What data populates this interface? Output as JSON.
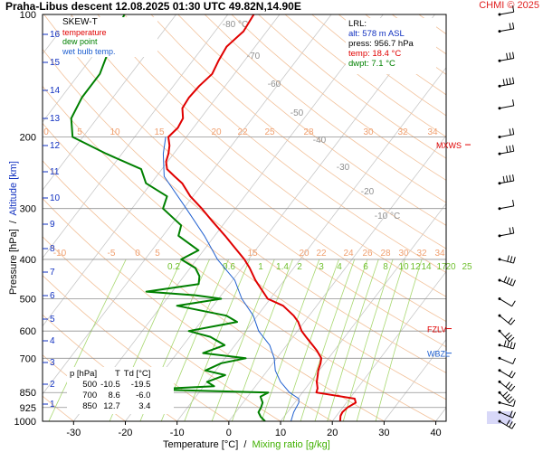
{
  "header": {
    "title": "Praha-Libus   descent   12.08.2025 01:30 UTC  49.82N,14.90E",
    "copyright": "CHMI © 2025"
  },
  "legend": {
    "title": "SKEW-T",
    "items": [
      {
        "label": "temperature",
        "color": "#e00000"
      },
      {
        "label": "dew point",
        "color": "#008000"
      },
      {
        "label": "wet bulb temp.",
        "color": "#2060d0"
      }
    ]
  },
  "lrl": {
    "title": "LRL:",
    "alt": "alt: 578 m ASL",
    "press": "press: 956.7 hPa",
    "temp": "temp: 18.4 °C",
    "dwpt": "dwpt: 7.1 °C"
  },
  "table": {
    "headers": [
      "p [hPa]",
      "T",
      "Td [°C]"
    ],
    "rows": [
      [
        "500",
        "-10.5",
        "-19.5"
      ],
      [
        "700",
        "8.6",
        "-6.0"
      ],
      [
        "850",
        "12.7",
        "3.4"
      ]
    ]
  },
  "axes": {
    "ylabel_pressure": "Pressure [hPa]",
    "ylabel_sep": "  /  ",
    "ylabel_altitude": "Altitude [km]",
    "xlabel_temp": "Temperature [°C]",
    "xlabel_sep": "  /  ",
    "xlabel_mixing": "Mixing ratio [g/kg]"
  },
  "markers": {
    "mxws": "MXWS",
    "fzlv": "FZLV",
    "wbzl": "WBZL"
  },
  "chart_data": {
    "type": "line",
    "diagram": "skew-T log-p",
    "pressure_ticks": [
      100,
      200,
      300,
      400,
      500,
      600,
      700,
      850,
      925,
      1000
    ],
    "temperature_ticks": [
      -30,
      -20,
      -10,
      0,
      10,
      20,
      30,
      40
    ],
    "xlim": [
      -36,
      42
    ],
    "ylim_hPa": [
      1000,
      100
    ],
    "altitude_ticks_km": [
      1,
      2,
      3,
      4,
      5,
      6,
      7,
      8,
      9,
      10,
      11,
      12,
      13,
      14,
      15,
      16
    ],
    "isotherm_labels": [
      -80,
      -70,
      -60,
      -50,
      -40,
      -30,
      -20,
      -10
    ],
    "isotherm_label_unit": "°C",
    "mixing_ratio_labels": [
      "0.2",
      "0.6",
      "1",
      "1.4",
      "2",
      "3",
      "4",
      "6",
      "8",
      "10",
      "12",
      "14",
      "17",
      "20",
      "25"
    ],
    "dry_adiabat_labels_200": [
      5,
      10,
      15,
      20,
      22,
      25,
      28,
      30,
      32,
      34
    ],
    "dry_adiabat_labels_400": [
      -10,
      -5,
      0,
      5,
      15,
      20,
      22,
      24,
      26,
      28,
      30,
      32,
      34
    ],
    "series": [
      {
        "name": "temperature",
        "color": "#e00000",
        "points": [
          [
            1000,
            21.5
          ],
          [
            970,
            20.8
          ],
          [
            950,
            20.6
          ],
          [
            925,
            20.9
          ],
          [
            900,
            21.8
          ],
          [
            880,
            21.0
          ],
          [
            850,
            12.7
          ],
          [
            830,
            12.3
          ],
          [
            800,
            11.2
          ],
          [
            770,
            10.4
          ],
          [
            750,
            9.8
          ],
          [
            720,
            9.2
          ],
          [
            700,
            8.6
          ],
          [
            670,
            6.6
          ],
          [
            650,
            5.0
          ],
          [
            620,
            2.5
          ],
          [
            600,
            0.8
          ],
          [
            570,
            -1.2
          ],
          [
            550,
            -3.0
          ],
          [
            520,
            -6.5
          ],
          [
            500,
            -10.5
          ],
          [
            470,
            -13.5
          ],
          [
            450,
            -15.6
          ],
          [
            420,
            -18.5
          ],
          [
            400,
            -20.8
          ],
          [
            370,
            -25.0
          ],
          [
            350,
            -28.0
          ],
          [
            320,
            -33.0
          ],
          [
            300,
            -36.5
          ],
          [
            280,
            -40.5
          ],
          [
            260,
            -44.0
          ],
          [
            250,
            -46.5
          ],
          [
            240,
            -49.0
          ],
          [
            230,
            -50.3
          ],
          [
            220,
            -51.0
          ],
          [
            210,
            -52.0
          ],
          [
            200,
            -53.5
          ],
          [
            190,
            -53.0
          ],
          [
            180,
            -53.4
          ],
          [
            170,
            -55.0
          ],
          [
            160,
            -55.3
          ],
          [
            150,
            -55.0
          ],
          [
            140,
            -54.3
          ],
          [
            130,
            -55.0
          ],
          [
            120,
            -55.5
          ],
          [
            110,
            -54.5
          ],
          [
            100,
            -55.0
          ]
        ]
      },
      {
        "name": "dew point",
        "color": "#008000",
        "points": [
          [
            1000,
            7.0
          ],
          [
            975,
            5.5
          ],
          [
            950,
            4.4
          ],
          [
            925,
            4.2
          ],
          [
            900,
            3.8
          ],
          [
            870,
            2.5
          ],
          [
            850,
            3.4
          ],
          [
            835,
            -20.0
          ],
          [
            820,
            -8.0
          ],
          [
            800,
            -10.0
          ],
          [
            770,
            -7.5
          ],
          [
            750,
            -12.0
          ],
          [
            720,
            -10.0
          ],
          [
            700,
            -6.0
          ],
          [
            680,
            -15.0
          ],
          [
            650,
            -12.0
          ],
          [
            620,
            -16.0
          ],
          [
            600,
            -21.0
          ],
          [
            570,
            -13.0
          ],
          [
            550,
            -16.0
          ],
          [
            520,
            -27.0
          ],
          [
            500,
            -19.5
          ],
          [
            490,
            -25.0
          ],
          [
            480,
            -35.0
          ],
          [
            460,
            -26.0
          ],
          [
            440,
            -27.0
          ],
          [
            420,
            -29.0
          ],
          [
            400,
            -33.0
          ],
          [
            380,
            -31.0
          ],
          [
            350,
            -37.0
          ],
          [
            330,
            -38.0
          ],
          [
            300,
            -44.0
          ],
          [
            280,
            -45.0
          ],
          [
            260,
            -51.0
          ],
          [
            240,
            -54.0
          ],
          [
            220,
            -63.0
          ],
          [
            200,
            -72.0
          ],
          [
            180,
            -75.0
          ],
          [
            160,
            -76.0
          ],
          [
            140,
            -76.0
          ],
          [
            120,
            -78.0
          ],
          [
            100,
            -80.0
          ]
        ]
      },
      {
        "name": "wet bulb temp.",
        "color": "#2060d0",
        "points": [
          [
            1000,
            12.0
          ],
          [
            950,
            11.2
          ],
          [
            925,
            11.0
          ],
          [
            900,
            10.8
          ],
          [
            880,
            10.2
          ],
          [
            850,
            7.5
          ],
          [
            800,
            4.2
          ],
          [
            750,
            1.5
          ],
          [
            700,
            -0.5
          ],
          [
            650,
            -3.3
          ],
          [
            600,
            -7.5
          ],
          [
            550,
            -10.8
          ],
          [
            500,
            -15.5
          ],
          [
            450,
            -19.6
          ],
          [
            400,
            -26.0
          ],
          [
            350,
            -32.0
          ],
          [
            300,
            -39.5
          ],
          [
            250,
            -48.5
          ],
          [
            220,
            -52.0
          ],
          [
            200,
            -54.0
          ]
        ]
      }
    ],
    "wind_barbs_hPa": [
      100,
      110,
      130,
      150,
      170,
      200,
      220,
      260,
      300,
      350,
      400,
      450,
      500,
      550,
      600,
      650,
      700,
      750,
      800,
      850,
      900,
      950,
      1000
    ],
    "markers_hPa": {
      "MXWS": 209,
      "FZLV": 592,
      "WBZL": 680
    }
  }
}
